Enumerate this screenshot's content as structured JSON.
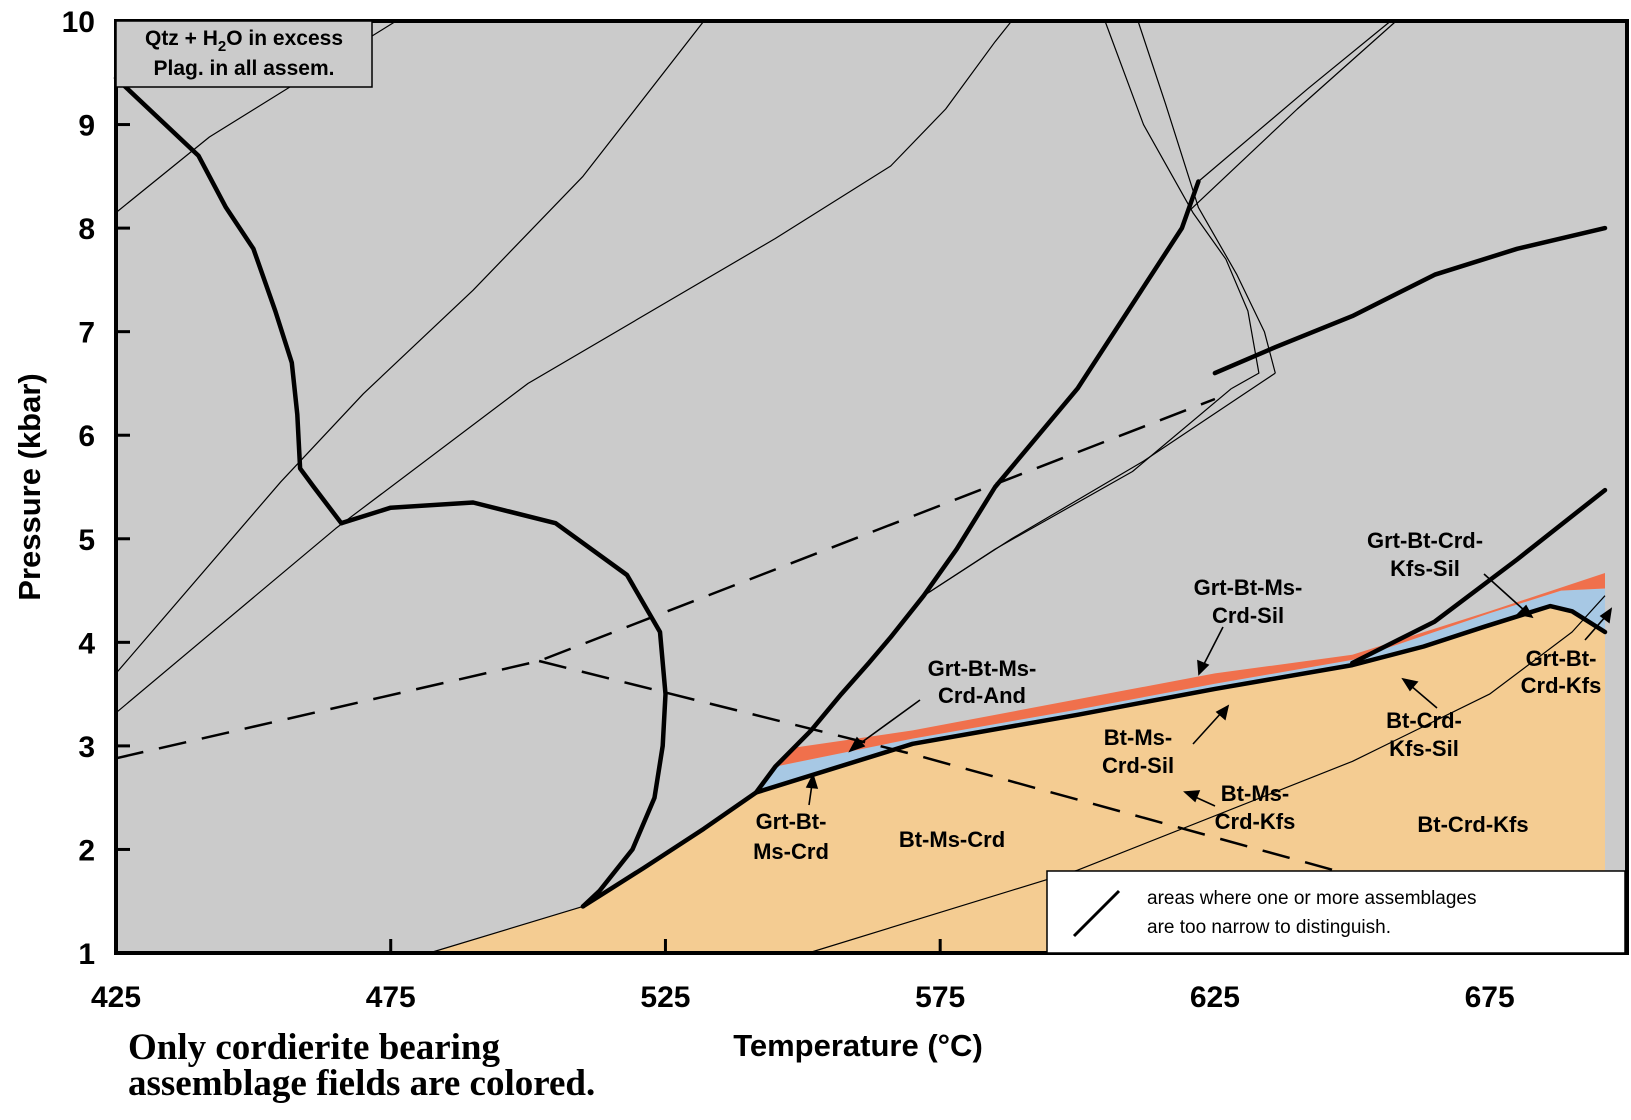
{
  "chart_data": {
    "type": "phase-diagram",
    "xlabel": "Temperature (°C)",
    "ylabel": "Pressure (kbar)",
    "xlim": [
      425,
      700
    ],
    "ylim": [
      1,
      10
    ],
    "xticks": [
      425,
      475,
      525,
      575,
      625,
      675
    ],
    "yticks": [
      1,
      2,
      3,
      4,
      5,
      6,
      7,
      8,
      9,
      10
    ],
    "colors": {
      "background_field": "#cbcbcb",
      "tan_field": "#f4cc92",
      "blue_field": "#a7c8e4",
      "red_field": "#f0704c",
      "line": "#000000"
    },
    "info_box": {
      "line1_prefix": "Qtz + H",
      "line1_sub": "2",
      "line1_suffix": "O in excess",
      "line2": "Plag. in all assem."
    },
    "field_labels": [
      {
        "lines": [
          "Grt-Bt-Ms-",
          "Crd-And"
        ]
      },
      {
        "lines": [
          "Grt-Bt-Ms-",
          "Crd-Sil"
        ]
      },
      {
        "lines": [
          "Grt-Bt-Crd-",
          "Kfs-Sil"
        ]
      },
      {
        "lines": [
          "Grt-Bt-",
          "Crd-Kfs"
        ]
      },
      {
        "lines": [
          "Bt-Ms-",
          "Crd-Sil"
        ]
      },
      {
        "lines": [
          "Bt-Crd-",
          "Kfs-Sil"
        ]
      },
      {
        "lines": [
          "Bt-Ms-",
          "Crd-Kfs"
        ]
      },
      {
        "lines": [
          "Grt-Bt-",
          "Ms-Crd"
        ]
      },
      {
        "lines": [
          "Bt-Ms-Crd"
        ]
      },
      {
        "lines": [
          "Bt-Crd-Kfs"
        ]
      }
    ],
    "legend_note": {
      "line1": "areas where one or more assemblages",
      "line2": "are too narrow to distinguish."
    },
    "boundaries": {
      "bold": [
        [
          [
            425,
            9.45
          ],
          [
            437,
            8.85
          ],
          [
            440,
            8.7
          ],
          [
            445,
            8.2
          ],
          [
            450,
            7.8
          ],
          [
            454,
            7.2
          ],
          [
            457,
            6.7
          ],
          [
            458,
            6.2
          ],
          [
            458.5,
            5.68
          ],
          [
            461,
            5.5
          ],
          [
            466,
            5.15
          ]
        ],
        [
          [
            466,
            5.15
          ],
          [
            475,
            5.3
          ],
          [
            490,
            5.35
          ],
          [
            505,
            5.15
          ],
          [
            518,
            4.65
          ],
          [
            524,
            4.1
          ],
          [
            525,
            3.5
          ],
          [
            524.5,
            3.0
          ],
          [
            523,
            2.5
          ],
          [
            519,
            2.0
          ],
          [
            513,
            1.6
          ],
          [
            510,
            1.45
          ]
        ],
        [
          [
            510,
            1.45
          ],
          [
            521,
            1.82
          ],
          [
            532,
            2.2
          ],
          [
            541.5,
            2.55
          ],
          [
            570,
            3.02
          ],
          [
            600,
            3.3
          ],
          [
            625,
            3.55
          ],
          [
            650,
            3.78
          ],
          [
            663,
            3.96
          ],
          [
            674,
            4.15
          ],
          [
            686,
            4.35
          ],
          [
            690,
            4.3
          ],
          [
            696,
            4.1
          ]
        ],
        [
          [
            541.5,
            2.55
          ],
          [
            545,
            2.8
          ],
          [
            551.5,
            3.15
          ],
          [
            557,
            3.5
          ],
          [
            562,
            3.8
          ],
          [
            566,
            4.05
          ],
          [
            572,
            4.45
          ],
          [
            578,
            4.9
          ],
          [
            585,
            5.5
          ],
          [
            600,
            6.45
          ],
          [
            619,
            8.0
          ],
          [
            622,
            8.45
          ]
        ],
        [
          [
            625,
            6.6
          ],
          [
            636,
            6.85
          ],
          [
            650,
            7.15
          ],
          [
            665,
            7.55
          ],
          [
            680,
            7.8
          ],
          [
            696,
            8.0
          ]
        ],
        [
          [
            650,
            3.8
          ],
          [
            665,
            4.2
          ],
          [
            680,
            4.8
          ],
          [
            696,
            5.47
          ]
        ]
      ],
      "thin": [
        [
          [
            425,
            8.15
          ],
          [
            442,
            8.88
          ],
          [
            476,
            10.0
          ]
        ],
        [
          [
            425,
            3.7
          ],
          [
            455,
            5.55
          ],
          [
            470,
            6.4
          ],
          [
            490,
            7.4
          ],
          [
            510,
            8.5
          ],
          [
            532,
            10.0
          ]
        ],
        [
          [
            425,
            3.32
          ],
          [
            465,
            5.1
          ],
          [
            500,
            6.5
          ],
          [
            545,
            7.9
          ],
          [
            566,
            8.6
          ],
          [
            576,
            9.15
          ],
          [
            585,
            9.8
          ],
          [
            588,
            10.0
          ]
        ],
        [
          [
            605,
            10.0
          ],
          [
            612,
            9.0
          ],
          [
            621,
            8.15
          ],
          [
            627,
            7.7
          ],
          [
            631,
            7.2
          ],
          [
            633,
            6.6
          ],
          [
            628,
            6.45
          ]
        ],
        [
          [
            611,
            10.0
          ],
          [
            616,
            9.2
          ],
          [
            622,
            8.2
          ],
          [
            629,
            7.55
          ],
          [
            634,
            7.0
          ],
          [
            636,
            6.6
          ]
        ],
        [
          [
            620,
            8.15
          ],
          [
            640,
            9.15
          ],
          [
            658,
            10.0
          ]
        ],
        [
          [
            622,
            8.45
          ],
          [
            642,
            9.35
          ],
          [
            657,
            10.0
          ]
        ],
        [
          [
            572,
            4.45
          ],
          [
            585,
            4.9
          ],
          [
            610,
            5.65
          ],
          [
            628,
            6.45
          ]
        ],
        [
          [
            572,
            4.45
          ],
          [
            588,
            5.0
          ],
          [
            612,
            5.75
          ],
          [
            636,
            6.6
          ]
        ],
        [
          [
            482,
            1.0
          ],
          [
            510,
            1.45
          ]
        ],
        [
          [
            551,
            1.0
          ],
          [
            600,
            1.8
          ],
          [
            650,
            2.85
          ],
          [
            675,
            3.5
          ],
          [
            690,
            4.1
          ],
          [
            696,
            4.45
          ]
        ]
      ],
      "dashed": [
        [
          [
            425,
            2.88
          ],
          [
            502,
            3.82
          ],
          [
            625,
            6.35
          ]
        ],
        [
          [
            502,
            3.82
          ],
          [
            570,
            2.92
          ],
          [
            648,
            1.78
          ]
        ]
      ]
    },
    "fields": {
      "tan": [
        [
          482,
          1.0
        ],
        [
          510,
          1.45
        ],
        [
          521,
          1.82
        ],
        [
          532,
          2.2
        ],
        [
          541.5,
          2.55
        ],
        [
          570,
          3.02
        ],
        [
          600,
          3.3
        ],
        [
          625,
          3.55
        ],
        [
          650,
          3.78
        ],
        [
          663,
          3.96
        ],
        [
          674,
          4.15
        ],
        [
          686,
          4.35
        ],
        [
          690,
          4.3
        ],
        [
          696,
          4.1
        ],
        [
          696,
          1.0
        ]
      ],
      "blue": [
        [
          541.5,
          2.55
        ],
        [
          545,
          2.8
        ],
        [
          570,
          3.07
        ],
        [
          600,
          3.35
        ],
        [
          625,
          3.6
        ],
        [
          650,
          3.83
        ],
        [
          675,
          4.28
        ],
        [
          688,
          4.5
        ],
        [
          696,
          4.52
        ],
        [
          696,
          4.1
        ],
        [
          690,
          4.3
        ],
        [
          686,
          4.35
        ],
        [
          674,
          4.15
        ],
        [
          663,
          3.96
        ],
        [
          650,
          3.78
        ],
        [
          625,
          3.55
        ],
        [
          600,
          3.3
        ],
        [
          570,
          3.02
        ]
      ],
      "red": [
        [
          545,
          2.8
        ],
        [
          548,
          2.98
        ],
        [
          570,
          3.15
        ],
        [
          600,
          3.45
        ],
        [
          625,
          3.7
        ],
        [
          650,
          3.88
        ],
        [
          675,
          4.3
        ],
        [
          696,
          4.67
        ],
        [
          696,
          4.52
        ],
        [
          688,
          4.5
        ],
        [
          675,
          4.28
        ],
        [
          650,
          3.83
        ],
        [
          625,
          3.6
        ],
        [
          600,
          3.35
        ],
        [
          570,
          3.07
        ]
      ]
    }
  },
  "footnote": {
    "line1": "Only cordierite bearing",
    "line2": "assemblage fields are colored."
  }
}
